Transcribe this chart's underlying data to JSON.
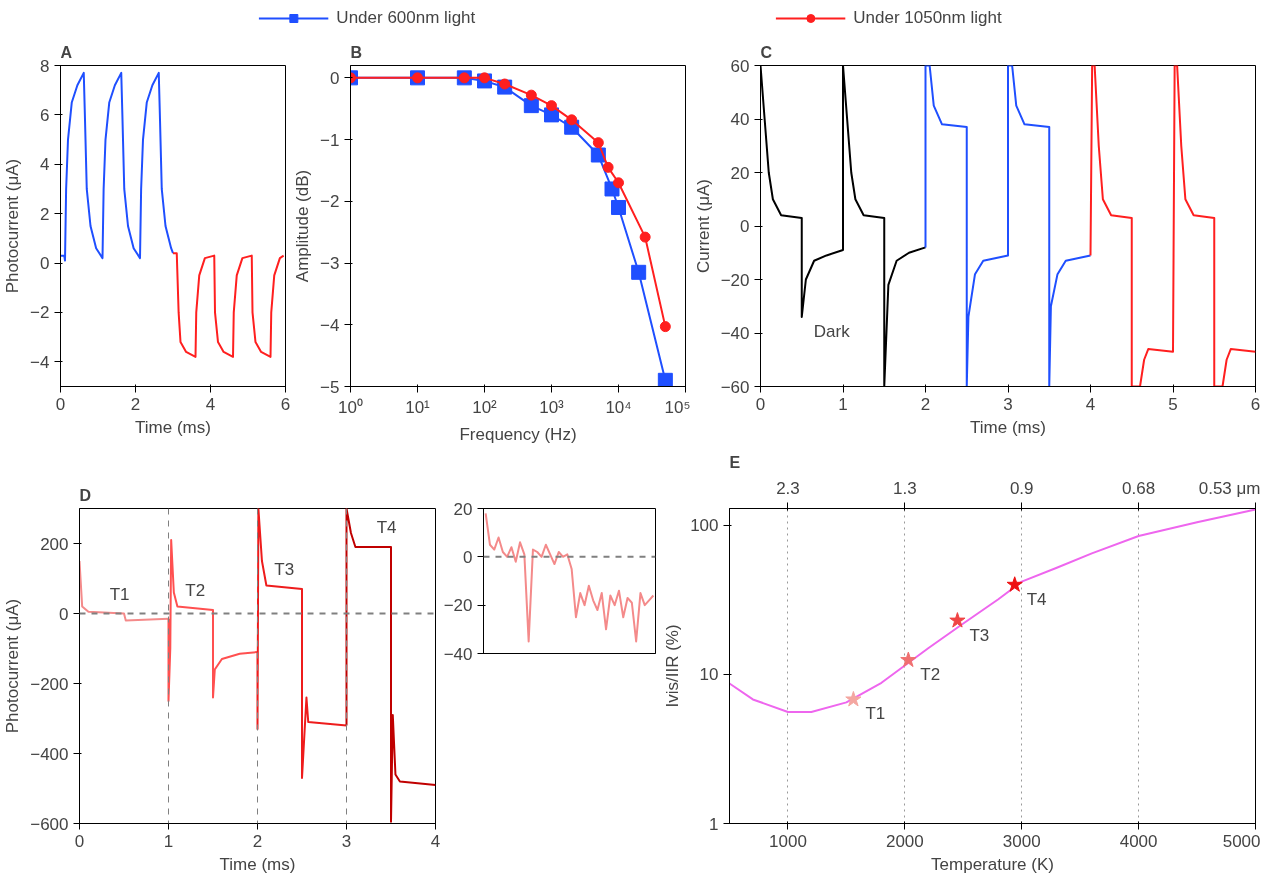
{
  "chart_data": [
    {
      "type": "line",
      "title": "A",
      "xlabel": "Time (ms)",
      "ylabel": "Photocurrent (μA)",
      "xlim": [
        0,
        6
      ],
      "xticks": [
        0,
        2,
        4,
        6
      ],
      "ylim": [
        -5,
        8
      ],
      "yticks": [
        -4,
        -2,
        0,
        2,
        4,
        6,
        8
      ],
      "grid": false,
      "series": [
        {
          "color": "#1f4fff",
          "x": [
            0,
            0.1,
            0.12,
            0.15,
            0.2,
            0.3,
            0.45,
            0.62,
            0.65,
            0.7,
            0.8,
            0.95,
            1.12,
            1.15,
            1.2,
            1.3,
            1.45,
            1.62,
            1.65,
            1.7,
            1.8,
            1.95,
            2.12,
            2.15,
            2.2,
            2.3,
            2.45,
            2.62,
            2.65,
            2.7,
            2.8,
            2.95,
            3.0
          ],
          "values": [
            0.3,
            0.3,
            0.1,
            3,
            5,
            6.5,
            7.2,
            7.7,
            6,
            3,
            1.5,
            0.6,
            0.2,
            3,
            5,
            6.5,
            7.2,
            7.7,
            6,
            3,
            1.5,
            0.6,
            0.2,
            3,
            5,
            6.5,
            7.2,
            7.7,
            6,
            3,
            1.5,
            0.6,
            0.4
          ]
        },
        {
          "color": "#ff1f1f",
          "x": [
            3.0,
            3.1,
            3.15,
            3.2,
            3.35,
            3.6,
            3.62,
            3.7,
            3.85,
            4.1,
            4.12,
            4.2,
            4.35,
            4.6,
            4.62,
            4.7,
            4.85,
            5.1,
            5.12,
            5.2,
            5.35,
            5.6,
            5.62,
            5.7,
            5.85,
            5.95
          ],
          "values": [
            0.4,
            0.4,
            -2,
            -3.2,
            -3.6,
            -3.8,
            -2,
            -0.5,
            0.2,
            0.3,
            -2,
            -3.2,
            -3.6,
            -3.8,
            -2,
            -0.5,
            0.2,
            0.3,
            -2,
            -3.2,
            -3.6,
            -3.8,
            -2,
            -0.5,
            0.2,
            0.3
          ]
        }
      ]
    },
    {
      "type": "line",
      "title": "B",
      "xlabel": "Frequency (Hz)",
      "ylabel": "Amplitude (dB)",
      "log": "x",
      "xlim": [
        1,
        100000
      ],
      "xticks": [
        {
          "value": 1,
          "label": "10⁰"
        },
        {
          "value": 10,
          "label": "10¹"
        },
        {
          "value": 100,
          "label": "10²"
        },
        {
          "value": 1000,
          "label": "10³"
        },
        {
          "value": 10000,
          "label": "10⁴"
        },
        {
          "value": 100000,
          "label": "10⁵"
        }
      ],
      "ylim": [
        -5,
        0.2
      ],
      "yticks": [
        -5,
        -4,
        -3,
        -2,
        -1,
        0
      ],
      "grid": false,
      "legend": "top",
      "series": [
        {
          "name": "Under 600nm light",
          "color": "#1f4fff",
          "marker": "square",
          "x": [
            1,
            10,
            50,
            100,
            200,
            500,
            1000,
            2000,
            5000,
            8000,
            10000,
            20000,
            50000
          ],
          "values": [
            0,
            0,
            0,
            -0.05,
            -0.15,
            -0.45,
            -0.6,
            -0.8,
            -1.25,
            -1.8,
            -2.1,
            -3.15,
            -4.9
          ]
        },
        {
          "name": "Under 1050nm light",
          "color": "#ff1f1f",
          "marker": "circle",
          "x": [
            1,
            10,
            50,
            100,
            200,
            500,
            1000,
            2000,
            5000,
            7000,
            10000,
            25000,
            50000
          ],
          "values": [
            0,
            0,
            0,
            0,
            -0.1,
            -0.28,
            -0.45,
            -0.68,
            -1.05,
            -1.45,
            -1.7,
            -2.58,
            -4.03
          ]
        }
      ]
    },
    {
      "type": "line",
      "title": "C",
      "xlabel": "Time (ms)",
      "ylabel": "Current (μA)",
      "xlim": [
        0,
        6
      ],
      "xticks": [
        0,
        1,
        2,
        3,
        4,
        5,
        6
      ],
      "ylim": [
        -60,
        60
      ],
      "yticks": [
        -60,
        -40,
        -20,
        0,
        20,
        40,
        60
      ],
      "grid": false,
      "annotations": [
        {
          "text": "Dark",
          "x": 0.5,
          "y": -34
        }
      ],
      "series": [
        {
          "color": "#000000",
          "x": [
            0,
            0.05,
            0.1,
            0.15,
            0.25,
            0.5,
            0.5,
            0.55,
            0.65,
            0.8,
            1.0,
            1.0,
            1.05,
            1.1,
            1.15,
            1.25,
            1.5,
            1.5,
            1.55,
            1.65,
            1.8,
            2.0
          ],
          "values": [
            60,
            40,
            20,
            10,
            4,
            3,
            -34,
            -20,
            -13,
            -11,
            -9,
            60,
            40,
            20,
            10,
            4,
            3,
            -60,
            -22,
            -13,
            -10,
            -8
          ]
        },
        {
          "color": "#1f4fff",
          "x": [
            2.0,
            2.0,
            2.05,
            2.1,
            2.2,
            2.5,
            2.5,
            2.52,
            2.6,
            2.7,
            3.0,
            3.0,
            3.05,
            3.1,
            3.2,
            3.5,
            3.5,
            3.52,
            3.6,
            3.7,
            4.0
          ],
          "values": [
            -8,
            60,
            60,
            45,
            38,
            37,
            -60,
            -34,
            -18,
            -13,
            -11,
            60,
            60,
            45,
            38,
            37,
            -60,
            -30,
            -18,
            -13,
            -11
          ]
        },
        {
          "color": "#ff1f1f",
          "x": [
            4.0,
            4.02,
            4.05,
            4.1,
            4.15,
            4.25,
            4.5,
            4.5,
            4.6,
            4.65,
            4.7,
            5.0,
            5.02,
            5.05,
            5.1,
            5.15,
            5.25,
            5.5,
            5.5,
            5.6,
            5.65,
            5.7,
            6.0
          ],
          "values": [
            -11,
            60,
            60,
            30,
            10,
            4,
            3,
            -60,
            -60,
            -50,
            -46,
            -47,
            60,
            60,
            30,
            10,
            4,
            3,
            -60,
            -60,
            -50,
            -46,
            -47
          ]
        }
      ]
    },
    {
      "type": "line",
      "title": "D",
      "xlabel": "Time (ms)",
      "ylabel": "Photocurrent (μA)",
      "xlim": [
        0,
        4
      ],
      "xticks": [
        0,
        1,
        2,
        3,
        4
      ],
      "ylim": [
        -600,
        300
      ],
      "yticks": [
        -600,
        -400,
        -200,
        0,
        200
      ],
      "grid": false,
      "ref_lines": [
        {
          "axis": "y",
          "value": 0,
          "color": "#808080",
          "line_style": "dashed"
        },
        {
          "axis": "x",
          "value": 1,
          "color": "#808080",
          "line_style": "dashed"
        },
        {
          "axis": "x",
          "value": 2,
          "color": "#808080",
          "line_style": "dashed"
        },
        {
          "axis": "x",
          "value": 3,
          "color": "#808080",
          "line_style": "dashed"
        }
      ],
      "annotations": [
        {
          "text": "T1",
          "x": 0.45,
          "y": 0
        },
        {
          "text": "T2",
          "x": 1.3,
          "y": 10
        },
        {
          "text": "T3",
          "x": 2.3,
          "y": 70
        },
        {
          "text": "T4",
          "x": 3.45,
          "y": 190
        }
      ],
      "series": [
        {
          "color": "#f48a8a",
          "x": [
            0,
            0.03,
            0.1,
            0.5,
            0.52,
            1.0
          ],
          "values": [
            150,
            20,
            5,
            0,
            -20,
            -15
          ]
        },
        {
          "color": "#ff5050",
          "x": [
            1.0,
            1.0,
            1.02,
            1.03,
            1.06,
            1.1,
            1.5,
            1.5,
            1.52,
            1.6,
            1.8,
            2.0
          ],
          "values": [
            -15,
            -250,
            -100,
            210,
            60,
            20,
            10,
            -240,
            -160,
            -130,
            -115,
            -110
          ]
        },
        {
          "color": "#ee1c1c",
          "x": [
            2.0,
            2.0,
            2.01,
            2.05,
            2.1,
            2.5,
            2.5,
            2.55,
            2.57,
            3.0
          ],
          "values": [
            -110,
            -330,
            300,
            150,
            80,
            70,
            -470,
            -240,
            -310,
            -320
          ]
        },
        {
          "color": "#c00000",
          "x": [
            3.0,
            3.0,
            3.05,
            3.1,
            3.5,
            3.5,
            3.52,
            3.55,
            3.6,
            4.0
          ],
          "values": [
            -320,
            300,
            230,
            190,
            190,
            -595,
            -290,
            -460,
            -480,
            -490
          ]
        }
      ]
    },
    {
      "type": "line",
      "categories": [
        null,
        null,
        null,
        null,
        null,
        null,
        null,
        null,
        null,
        null,
        null,
        null,
        null,
        null,
        null,
        null,
        null,
        null,
        null,
        null,
        null,
        null,
        null,
        null,
        null,
        null,
        null,
        null,
        null,
        null,
        null,
        null,
        null,
        null,
        null,
        null,
        null,
        null,
        null,
        null
      ],
      "ylim": [
        -40,
        20
      ],
      "yticks": [
        -40,
        -20,
        0,
        20
      ],
      "grid": false,
      "tick_labels": "y",
      "ref_lines": [
        {
          "axis": "y",
          "value": 0,
          "color": "#808080",
          "line_style": "dashed"
        }
      ],
      "series": [
        {
          "color": "#f48a8a",
          "values": [
            18,
            5,
            3,
            8,
            2,
            0,
            4,
            -2,
            6,
            1,
            -35,
            3,
            2,
            0,
            5,
            1,
            -3,
            2,
            0,
            1,
            -5,
            -25,
            -15,
            -20,
            -12,
            -18,
            -22,
            -15,
            -30,
            -16,
            -20,
            -14,
            -25,
            -17,
            -19,
            -35,
            -15,
            -20,
            -18,
            -16
          ]
        }
      ]
    },
    {
      "type": "line",
      "title": "E",
      "xlabel": "Temperature (K)",
      "ylabel": "Ivis/IIR (%)",
      "log": "y",
      "xlim": [
        500,
        5000
      ],
      "xticks": [
        1000,
        2000,
        3000,
        4000,
        5000
      ],
      "ylim": [
        1,
        130
      ],
      "yticks": [
        1,
        10,
        100
      ],
      "grid": "x",
      "annotations": [
        "2.3",
        "1.3",
        "0.9",
        "0.68",
        "0.53 μm",
        {
          "text": "T1",
          "x": 1560,
          "y": 6.8
        },
        {
          "text": "T2",
          "x": 2030,
          "y": 12.5
        },
        {
          "text": "T3",
          "x": 2450,
          "y": 23
        },
        {
          "text": "T4",
          "x": 2940,
          "y": 40
        }
      ],
      "series": [
        {
          "color": "#ee66ee",
          "x": [
            500,
            700,
            1000,
            1200,
            1500,
            1800,
            2000,
            2200,
            2500,
            2800,
            3000,
            3300,
            3600,
            4000,
            4500,
            5000
          ],
          "values": [
            8.7,
            6.8,
            5.6,
            5.6,
            6.5,
            8.8,
            11.5,
            15,
            22,
            32,
            42,
            52,
            65,
            85,
            105,
            128
          ]
        },
        {
          "type": "scatter",
          "marker": "star",
          "color": "#ee1111",
          "colors": [
            "#f4a6a0",
            "#f07070",
            "#f04545",
            "#ee1111"
          ],
          "x": [
            1560,
            2030,
            2450,
            2940
          ],
          "values": [
            6.8,
            12.5,
            23,
            40
          ]
        }
      ]
    }
  ]
}
